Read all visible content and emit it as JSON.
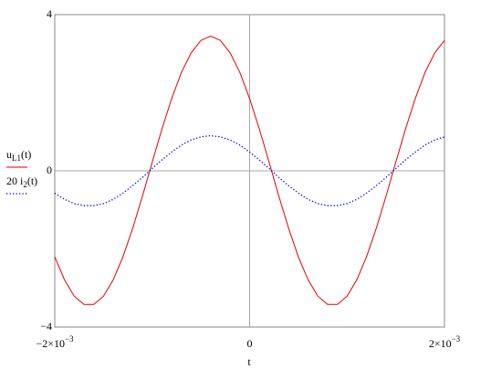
{
  "chart_data": {
    "type": "line",
    "x_label": "t",
    "x": [
      -0.002,
      -0.0019,
      -0.0018,
      -0.0017,
      -0.0016,
      -0.0015,
      -0.0014,
      -0.0013,
      -0.0012,
      -0.0011,
      -0.001,
      -0.0009,
      -0.0008,
      -0.0007,
      -0.0006,
      -0.0005,
      -0.0004,
      -0.0003,
      -0.0002,
      -0.0001,
      0,
      0.0001,
      0.0002,
      0.0003,
      0.0004,
      0.0005,
      0.0006,
      0.0007,
      0.0008,
      0.0009,
      0.001,
      0.0011,
      0.0012,
      0.0013,
      0.0014,
      0.0015,
      0.0016,
      0.0017,
      0.0018,
      0.0019,
      0.002
    ],
    "series": [
      {
        "name": "u",
        "name_sub": "L1",
        "name_suffix": "(t)",
        "color": "#e00000",
        "style": "solid",
        "values": [
          -2.2,
          -2.79,
          -3.21,
          -3.42,
          -3.42,
          -3.21,
          -2.79,
          -2.2,
          -1.47,
          -0.65,
          0.22,
          1.07,
          1.85,
          2.52,
          3.02,
          3.34,
          3.45,
          3.34,
          3.02,
          2.52,
          1.85,
          1.07,
          0.22,
          -0.65,
          -1.47,
          -2.2,
          -2.79,
          -3.21,
          -3.42,
          -3.42,
          -3.21,
          -2.79,
          -2.2,
          -1.47,
          -0.65,
          0.22,
          1.07,
          1.85,
          2.52,
          3.02,
          3.34
        ]
      },
      {
        "name": "20 i",
        "name_sub": "2",
        "name_suffix": "(t)",
        "color": "#0000e0",
        "style": "dotted",
        "values": [
          -0.57,
          -0.73,
          -0.84,
          -0.89,
          -0.89,
          -0.84,
          -0.73,
          -0.57,
          -0.38,
          -0.17,
          0.06,
          0.28,
          0.48,
          0.66,
          0.79,
          0.87,
          0.9,
          0.87,
          0.79,
          0.66,
          0.48,
          0.28,
          0.06,
          -0.17,
          -0.38,
          -0.57,
          -0.73,
          -0.84,
          -0.89,
          -0.89,
          -0.84,
          -0.73,
          -0.57,
          -0.38,
          -0.17,
          0.06,
          0.28,
          0.48,
          0.66,
          0.79,
          0.87
        ]
      }
    ],
    "xlim": [
      -0.002,
      0.002
    ],
    "ylim": [
      -4,
      4
    ],
    "xticks": [
      {
        "value": -0.002,
        "label": "−2×10",
        "exponent": "−3"
      },
      0,
      {
        "value": 0.002,
        "label": "2×10",
        "exponent": "−3"
      }
    ],
    "yticks": [
      {
        "value": -4,
        "label": "−4"
      },
      0,
      4
    ],
    "grid": "zero-lines"
  }
}
